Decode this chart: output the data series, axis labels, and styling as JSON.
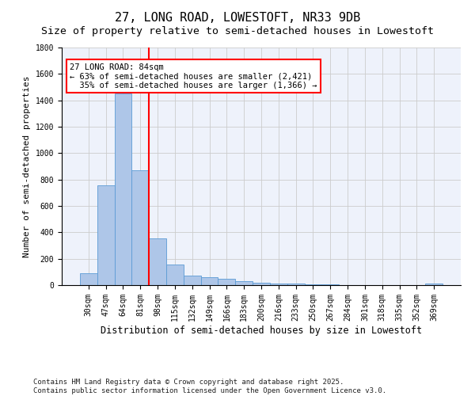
{
  "title": "27, LONG ROAD, LOWESTOFT, NR33 9DB",
  "subtitle": "Size of property relative to semi-detached houses in Lowestoft",
  "xlabel": "Distribution of semi-detached houses by size in Lowestoft",
  "ylabel": "Number of semi-detached properties",
  "categories": [
    "30sqm",
    "47sqm",
    "64sqm",
    "81sqm",
    "98sqm",
    "115sqm",
    "132sqm",
    "149sqm",
    "166sqm",
    "183sqm",
    "200sqm",
    "216sqm",
    "233sqm",
    "250sqm",
    "267sqm",
    "284sqm",
    "301sqm",
    "318sqm",
    "335sqm",
    "352sqm",
    "369sqm"
  ],
  "values": [
    90,
    755,
    1455,
    870,
    355,
    155,
    75,
    60,
    48,
    30,
    20,
    15,
    12,
    8,
    5,
    3,
    2,
    1,
    1,
    1,
    15
  ],
  "bar_color": "#aec6e8",
  "bar_edge_color": "#5b9bd5",
  "bar_edge_width": 0.6,
  "red_line_index": 3,
  "ylim": [
    0,
    1800
  ],
  "yticks": [
    0,
    200,
    400,
    600,
    800,
    1000,
    1200,
    1400,
    1600,
    1800
  ],
  "annotation_line1": "27 LONG ROAD: 84sqm",
  "annotation_line2": "← 63% of semi-detached houses are smaller (2,421)",
  "annotation_line3": "  35% of semi-detached houses are larger (1,366) →",
  "annotation_box_color": "white",
  "annotation_border_color": "red",
  "grid_color": "#cccccc",
  "background_color": "#eef2fb",
  "footer_line1": "Contains HM Land Registry data © Crown copyright and database right 2025.",
  "footer_line2": "Contains public sector information licensed under the Open Government Licence v3.0.",
  "title_fontsize": 11,
  "subtitle_fontsize": 9.5,
  "xlabel_fontsize": 8.5,
  "ylabel_fontsize": 8,
  "tick_fontsize": 7,
  "annotation_fontsize": 7.5,
  "footer_fontsize": 6.5
}
